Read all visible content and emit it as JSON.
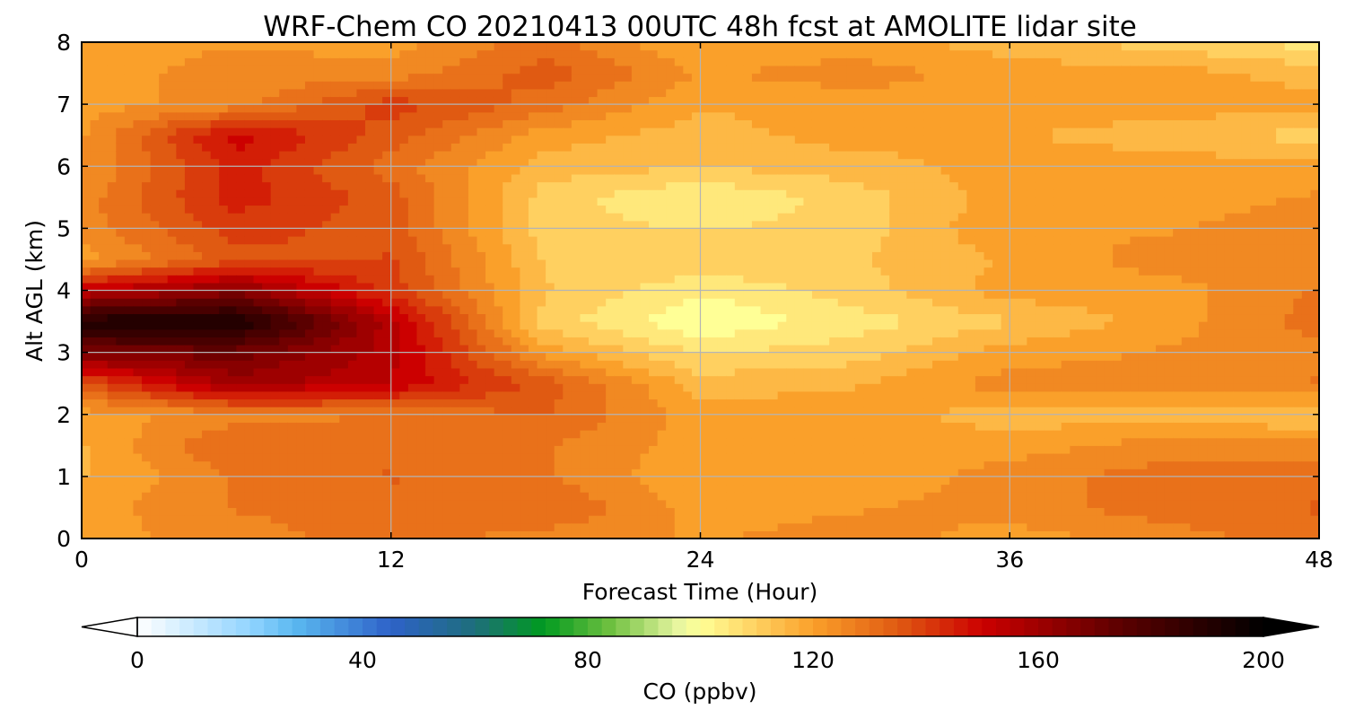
{
  "chart_data": {
    "type": "heatmap",
    "title": "WRF-Chem CO  20210413 00UTC 48h fcst at AMOLITE lidar site",
    "xlabel": "Forecast Time (Hour)",
    "ylabel": "Alt AGL (km)",
    "xlim": [
      0,
      48
    ],
    "ylim": [
      0,
      8
    ],
    "x_ticks": [
      0,
      12,
      24,
      36,
      48
    ],
    "y_ticks": [
      0,
      1,
      2,
      3,
      4,
      5,
      6,
      7,
      8
    ],
    "grid": true,
    "grid_x": [
      0,
      6,
      12,
      18,
      24,
      30,
      36,
      42,
      48
    ],
    "grid_y": [
      0,
      0.5,
      1,
      1.5,
      2,
      2.5,
      3,
      3.5,
      4,
      4.5,
      5,
      5.5,
      6,
      6.5,
      7,
      7.5,
      8
    ],
    "values": [
      [
        120,
        120,
        117,
        117,
        120,
        135,
        168,
        192,
        152,
        120,
        125,
        125,
        122,
        122,
        120,
        120,
        120
      ],
      [
        125,
        128,
        128,
        133,
        125,
        160,
        170,
        194,
        165,
        135,
        140,
        145,
        145,
        150,
        125,
        125,
        122
      ],
      [
        130,
        130,
        133,
        130,
        128,
        152,
        155,
        155,
        140,
        138,
        135,
        135,
        130,
        135,
        140,
        125,
        120
      ],
      [
        125,
        133,
        128,
        128,
        133,
        135,
        120,
        110,
        113,
        112,
        110,
        110,
        115,
        120,
        130,
        135,
        130
      ],
      [
        122,
        120,
        118,
        120,
        120,
        115,
        107,
        98,
        103,
        112,
        107,
        102,
        113,
        115,
        118,
        122,
        117
      ],
      [
        125,
        122,
        118,
        120,
        120,
        117,
        110,
        105,
        110,
        112,
        110,
        110,
        115,
        120,
        120,
        125,
        120
      ],
      [
        120,
        125,
        125,
        120,
        115,
        125,
        120,
        112,
        120,
        118,
        122,
        120,
        120,
        118,
        120,
        120,
        115
      ],
      [
        125,
        130,
        130,
        125,
        115,
        125,
        123,
        120,
        120,
        125,
        122,
        120,
        120,
        115,
        120,
        120,
        110
      ],
      [
        130,
        133,
        130,
        125,
        112,
        128,
        125,
        130,
        128,
        125,
        125,
        123,
        120,
        110,
        120,
        115,
        105
      ],
      [
        130,
        133,
        130,
        125,
        110,
        130,
        138,
        140,
        135,
        133,
        125,
        120,
        115,
        100,
        110,
        112,
        110
      ],
      [
        127,
        128,
        125,
        120,
        112,
        128,
        135,
        140,
        135,
        125,
        118,
        112,
        108,
        92,
        108,
        105,
        118
      ]
    ],
    "colorbar": {
      "label": "CO  (ppbv)",
      "min": 0,
      "max": 200,
      "ticks": [
        0,
        40,
        80,
        120,
        160,
        200
      ],
      "extend": "both",
      "stops": [
        {
          "v": 0,
          "c": "#ffffff"
        },
        {
          "v": 20,
          "c": "#92d4ff"
        },
        {
          "v": 28,
          "c": "#5ab8f0"
        },
        {
          "v": 45,
          "c": "#2e62c8"
        },
        {
          "v": 60,
          "c": "#1e6e7a"
        },
        {
          "v": 72,
          "c": "#009a20"
        },
        {
          "v": 84,
          "c": "#6ec040"
        },
        {
          "v": 96,
          "c": "#e6f5a0"
        },
        {
          "v": 100,
          "c": "#ffff96"
        },
        {
          "v": 110,
          "c": "#ffd060"
        },
        {
          "v": 120,
          "c": "#faa02a"
        },
        {
          "v": 135,
          "c": "#e05a12"
        },
        {
          "v": 150,
          "c": "#cc0000"
        },
        {
          "v": 175,
          "c": "#5a0000"
        },
        {
          "v": 200,
          "c": "#000000"
        }
      ]
    }
  }
}
